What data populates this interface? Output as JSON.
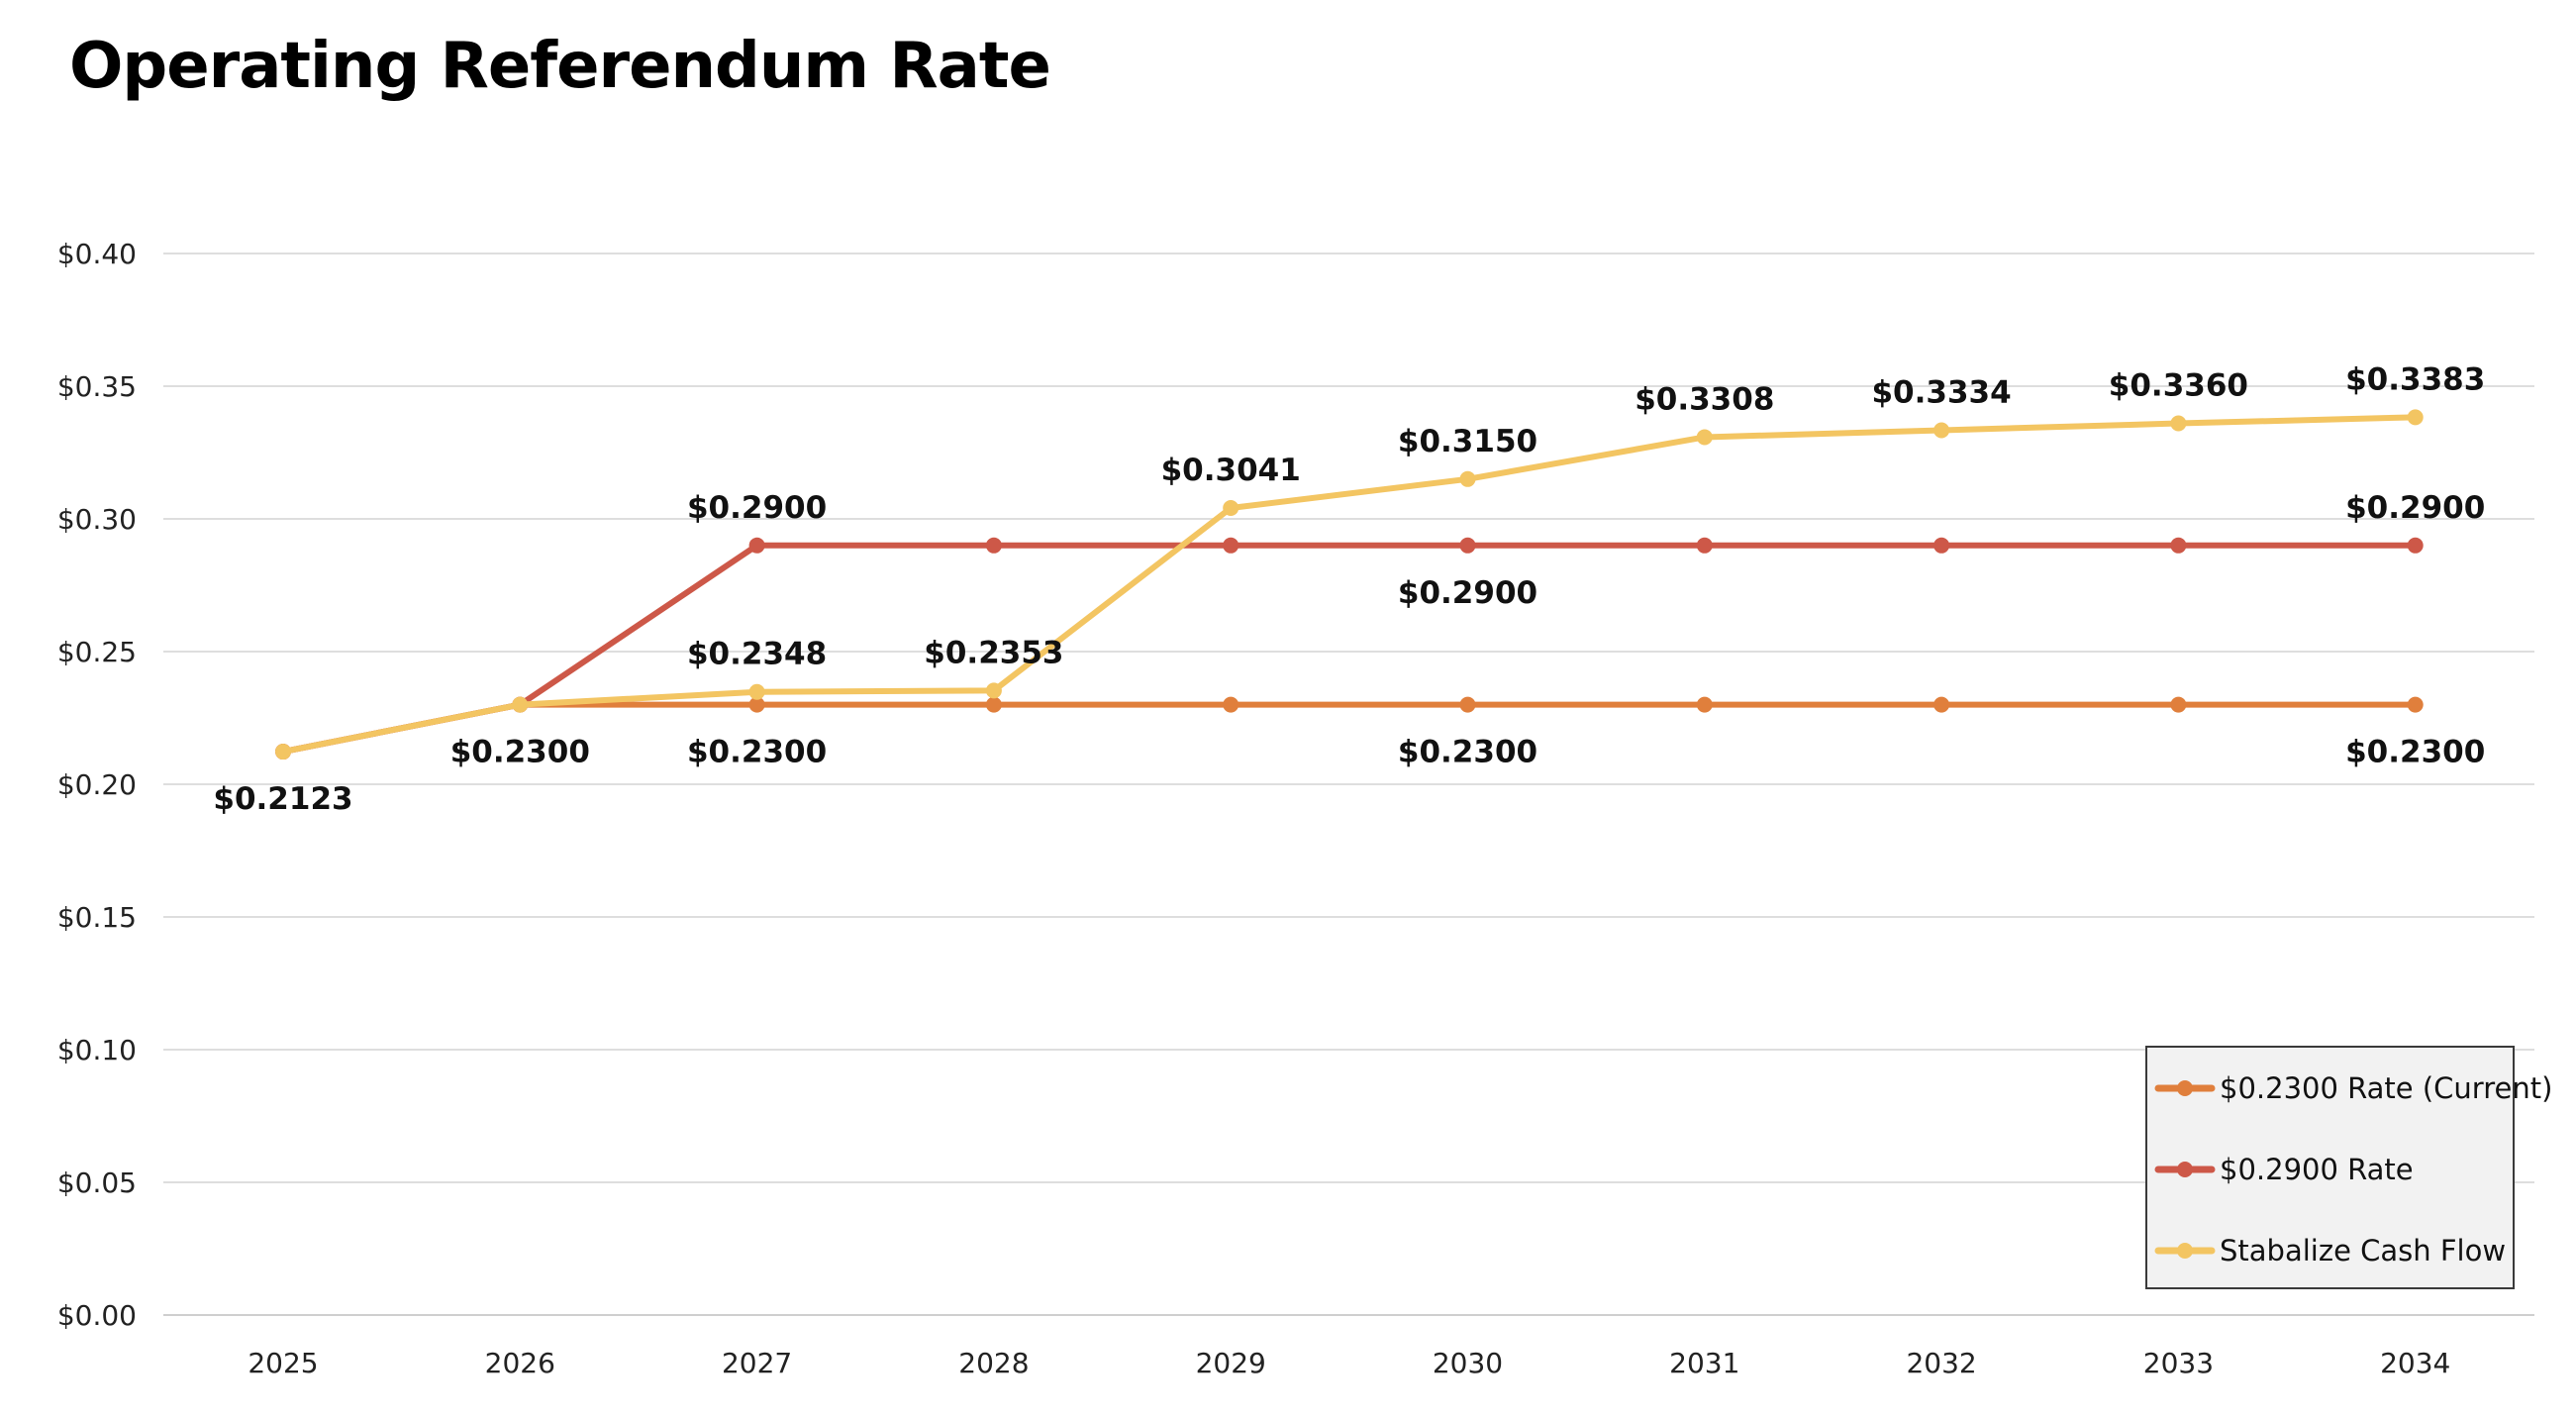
{
  "chart_data": {
    "type": "line",
    "title": "Operating Referendum Rate",
    "xlabel": "",
    "ylabel": "",
    "categories": [
      "2025",
      "2026",
      "2027",
      "2028",
      "2029",
      "2030",
      "2031",
      "2032",
      "2033",
      "2034"
    ],
    "ylim": [
      0,
      0.4
    ],
    "yticks": [
      "$0.00",
      "$0.05",
      "$0.10",
      "$0.15",
      "$0.20",
      "$0.25",
      "$0.30",
      "$0.35",
      "$0.40"
    ],
    "grid": true,
    "legend_position": "bottom-right",
    "series": [
      {
        "name": "$0.2300 Rate (Current)",
        "color": "#E07F3C",
        "values": [
          0.2123,
          0.23,
          0.23,
          0.23,
          0.23,
          0.23,
          0.23,
          0.23,
          0.23,
          0.23
        ]
      },
      {
        "name": "$0.2900 Rate",
        "color": "#CD5848",
        "values": [
          0.2123,
          0.23,
          0.29,
          0.29,
          0.29,
          0.29,
          0.29,
          0.29,
          0.29,
          0.29
        ]
      },
      {
        "name": "Stabalize Cash Flow",
        "color": "#F3C562",
        "values": [
          0.2123,
          0.23,
          0.2348,
          0.2353,
          0.3041,
          0.315,
          0.3308,
          0.3334,
          0.336,
          0.3383
        ]
      }
    ],
    "data_labels": [
      {
        "text": "$0.2123",
        "series": 0,
        "index": 0,
        "placement": "below"
      },
      {
        "text": "$0.2300",
        "series": 0,
        "index": 1,
        "placement": "below"
      },
      {
        "text": "$0.2300",
        "series": 0,
        "index": 2,
        "placement": "below"
      },
      {
        "text": "$0.2300",
        "series": 0,
        "index": 5,
        "placement": "below"
      },
      {
        "text": "$0.2300",
        "series": 0,
        "index": 9,
        "placement": "below"
      },
      {
        "text": "$0.2900",
        "series": 1,
        "index": 2,
        "placement": "above"
      },
      {
        "text": "$0.2900",
        "series": 1,
        "index": 5,
        "placement": "below"
      },
      {
        "text": "$0.2900",
        "series": 1,
        "index": 9,
        "placement": "above"
      },
      {
        "text": "$0.2348",
        "series": 2,
        "index": 2,
        "placement": "above"
      },
      {
        "text": "$0.2353",
        "series": 2,
        "index": 3,
        "placement": "above"
      },
      {
        "text": "$0.3041",
        "series": 2,
        "index": 4,
        "placement": "above"
      },
      {
        "text": "$0.3150",
        "series": 2,
        "index": 5,
        "placement": "above"
      },
      {
        "text": "$0.3308",
        "series": 2,
        "index": 6,
        "placement": "above"
      },
      {
        "text": "$0.3334",
        "series": 2,
        "index": 7,
        "placement": "above"
      },
      {
        "text": "$0.3360",
        "series": 2,
        "index": 8,
        "placement": "above"
      },
      {
        "text": "$0.3383",
        "series": 2,
        "index": 9,
        "placement": "above"
      }
    ]
  }
}
